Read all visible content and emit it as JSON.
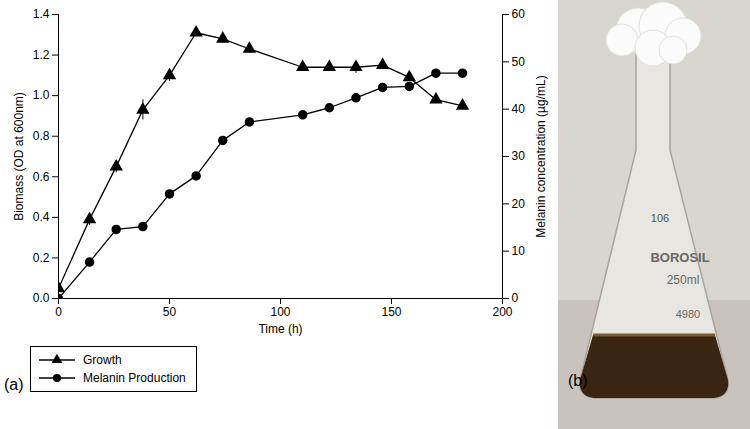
{
  "chart_data": {
    "type": "line",
    "x_label": "Time (h)",
    "y_label": "Biomass (OD at 600nm)",
    "y2_label": "Melanin concentration (µg/mL)",
    "x": [
      0,
      14,
      26,
      38,
      50,
      62,
      74,
      86,
      110,
      122,
      134,
      146,
      158,
      170,
      182
    ],
    "xlim": [
      0,
      200
    ],
    "xticks": [
      0,
      50,
      100,
      150,
      200
    ],
    "ylim": [
      0,
      1.4
    ],
    "yticks": [
      {
        "value": 0,
        "label": "0.0"
      },
      0.2,
      0.4,
      0.6,
      0.8,
      {
        "value": 1,
        "label": "1.0"
      },
      1.2,
      1.4
    ],
    "y2lim": [
      0,
      60
    ],
    "y2ticks": [
      0,
      10,
      20,
      30,
      40,
      50,
      60
    ],
    "legend": "bottom",
    "annotations": [
      "(a)"
    ],
    "series": [
      {
        "name": "Growth",
        "color": "#000000",
        "marker": "triangle",
        "values": [
          0.05,
          0.39,
          0.65,
          0.93,
          1.1,
          1.31,
          1.28,
          1.23,
          1.14,
          1.14,
          1.14,
          1.15,
          1.09,
          0.98,
          0.95
        ],
        "errors": [
          0.02,
          0.03,
          0.03,
          0.05,
          0.03,
          0.01,
          0.02,
          0.02,
          0.02,
          0.02,
          0.03,
          0.01,
          0.02,
          0.02,
          0.02
        ]
      },
      {
        "name": "Melanin Production",
        "color": "#000000",
        "marker": "circle",
        "axis": "y2",
        "values": [
          0,
          7.7,
          14.6,
          15.2,
          22.1,
          25.9,
          33.4,
          37.3,
          38.8,
          40.3,
          42.4,
          44.6,
          44.8,
          47.6,
          47.6
        ],
        "errors": [
          0.3,
          0.4,
          0.4,
          0.4,
          0.5,
          0.4,
          0.4,
          0.5,
          0.4,
          0.4,
          0.5,
          0.5,
          0.5,
          0.4,
          0.4
        ]
      }
    ]
  },
  "photo": {
    "label": "(b)",
    "texts": [
      "BOROSIL",
      "250ml",
      "4980",
      "106"
    ]
  }
}
